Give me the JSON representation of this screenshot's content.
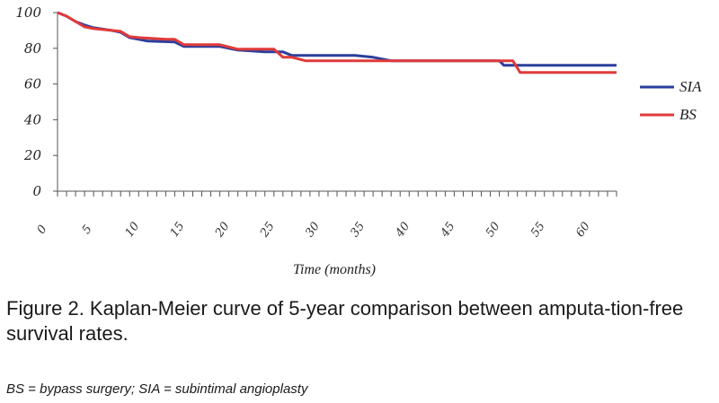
{
  "chart_data": {
    "type": "line",
    "title": "",
    "xlabel": "Time (months)",
    "ylabel": "",
    "xlim": [
      0,
      62
    ],
    "ylim": [
      0,
      100
    ],
    "x_ticks": [
      0,
      5,
      10,
      15,
      20,
      25,
      30,
      35,
      40,
      45,
      50,
      55,
      60
    ],
    "y_ticks": [
      0,
      20,
      40,
      60,
      80,
      100
    ],
    "grid": false,
    "legend_position": "right",
    "series": [
      {
        "name": "SIA",
        "color": "#2b3f9c",
        "points": [
          [
            0,
            100
          ],
          [
            1,
            98
          ],
          [
            2,
            95
          ],
          [
            3,
            93
          ],
          [
            4,
            91.5
          ],
          [
            6,
            90
          ],
          [
            7,
            89
          ],
          [
            8,
            86
          ],
          [
            9,
            85
          ],
          [
            10,
            84
          ],
          [
            13,
            83.5
          ],
          [
            14,
            81
          ],
          [
            18,
            81
          ],
          [
            20,
            79
          ],
          [
            23,
            78
          ],
          [
            25,
            78
          ],
          [
            26,
            76
          ],
          [
            33,
            76
          ],
          [
            35,
            75
          ],
          [
            37,
            73
          ],
          [
            49,
            73
          ],
          [
            49.5,
            70.5
          ],
          [
            62,
            70.5
          ]
        ]
      },
      {
        "name": "BS",
        "color": "#e03a3a",
        "points": [
          [
            0,
            100
          ],
          [
            1,
            98
          ],
          [
            3,
            92
          ],
          [
            4,
            91
          ],
          [
            6,
            90
          ],
          [
            7,
            89.5
          ],
          [
            8,
            86.5
          ],
          [
            9,
            86
          ],
          [
            12,
            85
          ],
          [
            13,
            85
          ],
          [
            14,
            82
          ],
          [
            18,
            82
          ],
          [
            20,
            79.5
          ],
          [
            24,
            79.5
          ],
          [
            25,
            75
          ],
          [
            26,
            75
          ],
          [
            27.5,
            73
          ],
          [
            50.5,
            73
          ],
          [
            51.3,
            66.5
          ],
          [
            62,
            66.5
          ]
        ]
      }
    ]
  },
  "caption": "Figure 2. Kaplan-Meier curve of 5-year comparison between amputa-tion-free survival rates.",
  "note": "BS = bypass surgery; SIA = subintimal angioplasty"
}
